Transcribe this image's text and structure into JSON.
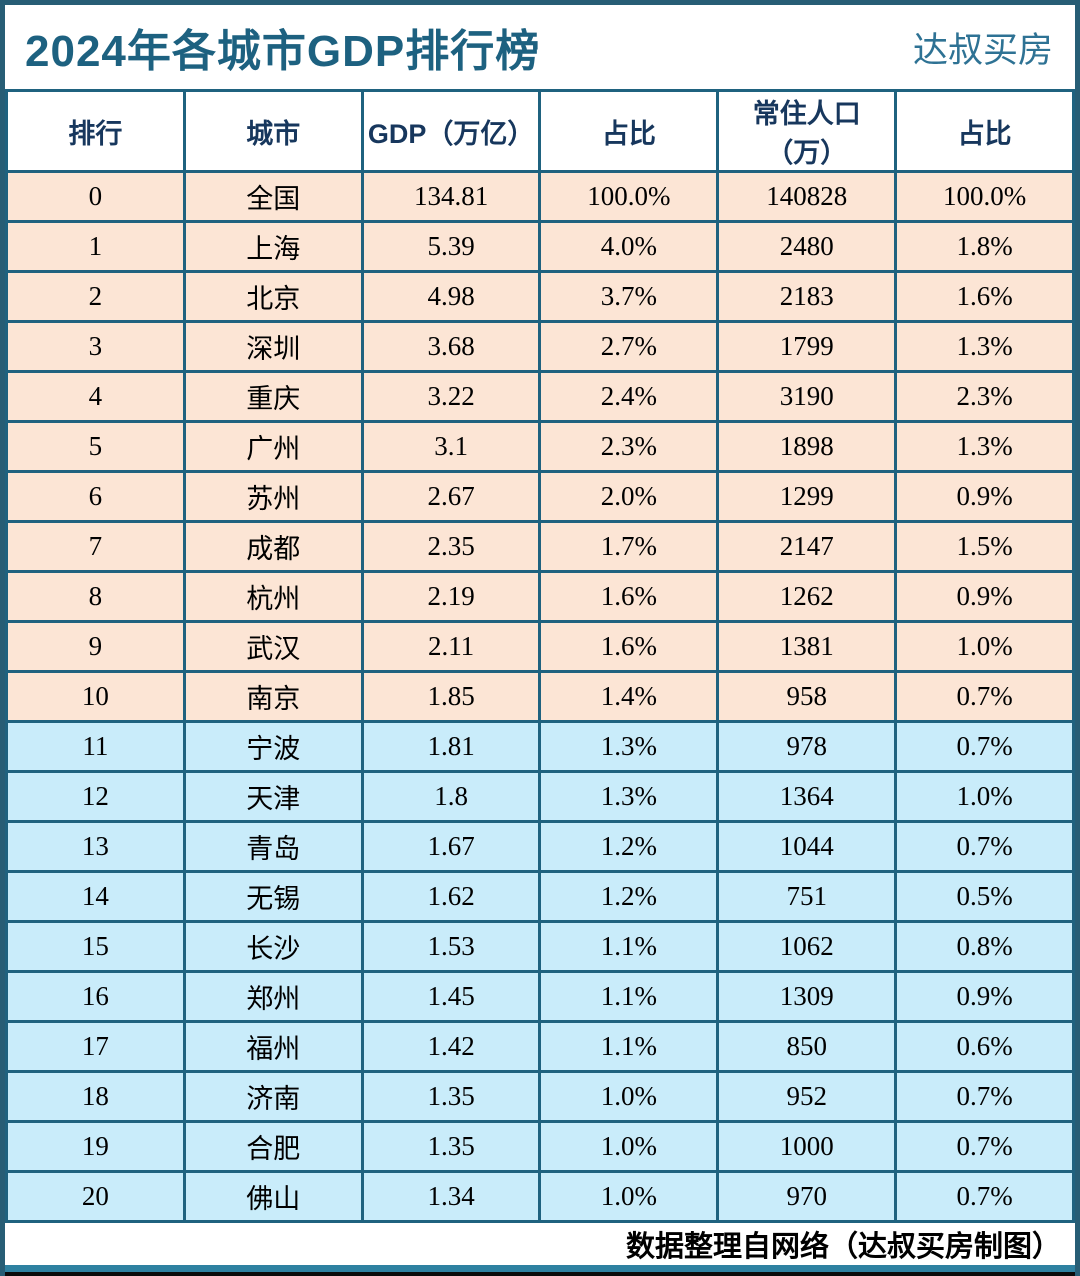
{
  "header": {
    "title": "2024年各城市GDP排行榜",
    "brand": "达叔买房"
  },
  "chart_data": {
    "type": "table",
    "title": "2024年各城市GDP排行榜",
    "columns": [
      "排行",
      "城市",
      "GDP（万亿）",
      "占比",
      "常住人口（万）",
      "占比"
    ],
    "rows": [
      [
        "0",
        "全国",
        "134.81",
        "100.0%",
        "140828",
        "100.0%"
      ],
      [
        "1",
        "上海",
        "5.39",
        "4.0%",
        "2480",
        "1.8%"
      ],
      [
        "2",
        "北京",
        "4.98",
        "3.7%",
        "2183",
        "1.6%"
      ],
      [
        "3",
        "深圳",
        "3.68",
        "2.7%",
        "1799",
        "1.3%"
      ],
      [
        "4",
        "重庆",
        "3.22",
        "2.4%",
        "3190",
        "2.3%"
      ],
      [
        "5",
        "广州",
        "3.1",
        "2.3%",
        "1898",
        "1.3%"
      ],
      [
        "6",
        "苏州",
        "2.67",
        "2.0%",
        "1299",
        "0.9%"
      ],
      [
        "7",
        "成都",
        "2.35",
        "1.7%",
        "2147",
        "1.5%"
      ],
      [
        "8",
        "杭州",
        "2.19",
        "1.6%",
        "1262",
        "0.9%"
      ],
      [
        "9",
        "武汉",
        "2.11",
        "1.6%",
        "1381",
        "1.0%"
      ],
      [
        "10",
        "南京",
        "1.85",
        "1.4%",
        "958",
        "0.7%"
      ],
      [
        "11",
        "宁波",
        "1.81",
        "1.3%",
        "978",
        "0.7%"
      ],
      [
        "12",
        "天津",
        "1.8",
        "1.3%",
        "1364",
        "1.0%"
      ],
      [
        "13",
        "青岛",
        "1.67",
        "1.2%",
        "1044",
        "0.7%"
      ],
      [
        "14",
        "无锡",
        "1.62",
        "1.2%",
        "751",
        "0.5%"
      ],
      [
        "15",
        "长沙",
        "1.53",
        "1.1%",
        "1062",
        "0.8%"
      ],
      [
        "16",
        "郑州",
        "1.45",
        "1.1%",
        "1309",
        "0.9%"
      ],
      [
        "17",
        "福州",
        "1.42",
        "1.1%",
        "850",
        "0.6%"
      ],
      [
        "18",
        "济南",
        "1.35",
        "1.0%",
        "952",
        "0.7%"
      ],
      [
        "19",
        "合肥",
        "1.35",
        "1.0%",
        "1000",
        "0.7%"
      ],
      [
        "20",
        "佛山",
        "1.34",
        "1.0%",
        "970",
        "0.7%"
      ]
    ],
    "peach_row_count": 11,
    "layout": {
      "grid": "6 equal columns",
      "row_group_backgrounds": [
        "rows 0-10 peach",
        "rows 11-20 light blue"
      ]
    }
  },
  "footer": {
    "credit": "数据整理自网络（达叔买房制图）"
  },
  "colors": {
    "title_teal": "#1d6180",
    "brand_teal": "#2e7294",
    "header_navy": "#17375d",
    "cell_border_teal": "#1f627f",
    "outer_frame_teal": "#275d75",
    "row_peach": "#fce5d5",
    "row_light_blue": "#c9ecfa",
    "bottom_bar_teal": "#2e81a1",
    "bottom_bar_black": "#0b0b0b"
  }
}
